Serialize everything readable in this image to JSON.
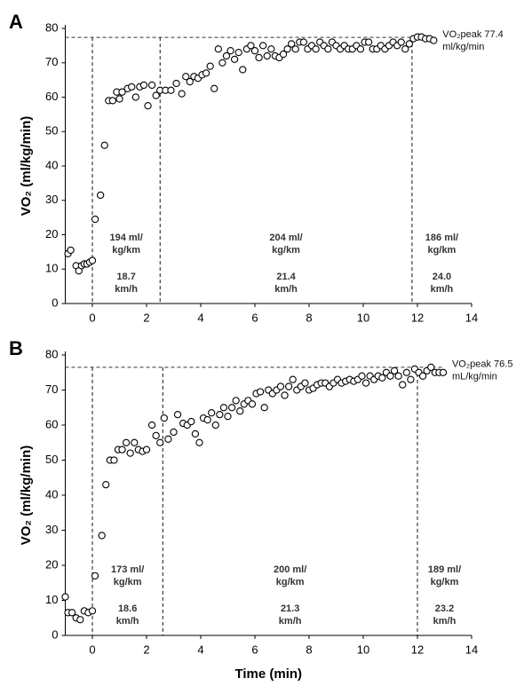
{
  "chart_data": [
    {
      "type": "scatter",
      "panel": "A",
      "ylabel": "VO₂ (ml/kg/min)",
      "x": [
        -0.9,
        -0.8,
        -0.6,
        -0.5,
        -0.4,
        -0.3,
        -0.2,
        -0.1,
        0,
        0.1,
        0.3,
        0.45,
        0.6,
        0.75,
        0.9,
        1.0,
        1.1,
        1.3,
        1.45,
        1.6,
        1.75,
        1.9,
        2.05,
        2.2,
        2.35,
        2.5,
        2.7,
        2.9,
        3.1,
        3.3,
        3.45,
        3.6,
        3.75,
        3.9,
        4.05,
        4.2,
        4.35,
        4.5,
        4.65,
        4.8,
        4.95,
        5.1,
        5.25,
        5.4,
        5.55,
        5.7,
        5.85,
        6.0,
        6.15,
        6.3,
        6.45,
        6.6,
        6.75,
        6.9,
        7.05,
        7.2,
        7.35,
        7.5,
        7.65,
        7.8,
        7.95,
        8.1,
        8.25,
        8.4,
        8.55,
        8.7,
        8.85,
        9.0,
        9.15,
        9.3,
        9.45,
        9.6,
        9.75,
        9.9,
        10.05,
        10.2,
        10.35,
        10.5,
        10.65,
        10.8,
        10.95,
        11.1,
        11.25,
        11.4,
        11.55,
        11.7,
        11.85,
        12.0,
        12.15,
        12.3,
        12.45,
        12.6
      ],
      "values": [
        14.5,
        15.5,
        11,
        9.5,
        11,
        11.5,
        11.5,
        12,
        12.5,
        24.5,
        31.5,
        46,
        59,
        59,
        61.5,
        59.5,
        61.5,
        62.5,
        63,
        60,
        63,
        63.5,
        57.5,
        63.5,
        60.5,
        62,
        62,
        62,
        64,
        61,
        66,
        64.5,
        66,
        65.5,
        66.5,
        67,
        69,
        62.5,
        74,
        70,
        72,
        73.5,
        71,
        73,
        68,
        74,
        75,
        73.5,
        71.5,
        75,
        72,
        74,
        72,
        71.5,
        72.5,
        74,
        75.5,
        74,
        76,
        76,
        74,
        75,
        74,
        76,
        75,
        74,
        76,
        75,
        74,
        75,
        74,
        74,
        75,
        74,
        76,
        76,
        74,
        74,
        75,
        74,
        75,
        76,
        75,
        76,
        74,
        75.5,
        77,
        77.5,
        77.5,
        77,
        77,
        76.5
      ],
      "color": "#000000",
      "xlim": [
        -1,
        14
      ],
      "xticks": [
        0,
        2,
        4,
        6,
        8,
        10,
        12,
        14
      ],
      "ylim": [
        0,
        80
      ],
      "yticks": [
        0,
        10,
        20,
        30,
        40,
        50,
        60,
        70,
        80
      ],
      "peak": 77.4,
      "peak_label": [
        "VO₂peak 77.4",
        "ml/kg/min"
      ],
      "phase_lines": [
        0,
        2.5,
        11.8
      ],
      "phase_labels": [
        {
          "economy": [
            "194 ml/",
            "kg/km"
          ],
          "speed": [
            "18.7",
            "km/h"
          ]
        },
        {
          "economy": [
            "204 ml/",
            "kg/km"
          ],
          "speed": [
            "21.4",
            "km/h"
          ]
        },
        {
          "economy": [
            "186 ml/",
            "kg/km"
          ],
          "speed": [
            "24.0",
            "km/h"
          ]
        }
      ]
    },
    {
      "type": "scatter",
      "panel": "B",
      "ylabel": "VO₂ (ml/kg/min)",
      "xlabel": "Time (min)",
      "x": [
        -1,
        -0.9,
        -0.75,
        -0.6,
        -0.45,
        -0.3,
        -0.15,
        0,
        0.1,
        0.35,
        0.5,
        0.65,
        0.8,
        0.95,
        1.1,
        1.25,
        1.4,
        1.55,
        1.7,
        1.85,
        2.0,
        2.2,
        2.35,
        2.5,
        2.65,
        2.8,
        3.0,
        3.15,
        3.35,
        3.5,
        3.65,
        3.8,
        3.95,
        4.1,
        4.25,
        4.4,
        4.55,
        4.7,
        4.85,
        5.0,
        5.15,
        5.3,
        5.45,
        5.6,
        5.75,
        5.9,
        6.05,
        6.2,
        6.35,
        6.5,
        6.65,
        6.8,
        6.95,
        7.1,
        7.25,
        7.4,
        7.55,
        7.7,
        7.85,
        8.0,
        8.15,
        8.3,
        8.45,
        8.6,
        8.75,
        8.9,
        9.05,
        9.2,
        9.35,
        9.5,
        9.65,
        9.8,
        9.95,
        10.1,
        10.25,
        10.4,
        10.55,
        10.7,
        10.85,
        11.0,
        11.15,
        11.3,
        11.45,
        11.6,
        11.75,
        11.9,
        12.05,
        12.2,
        12.35,
        12.5,
        12.65,
        12.8,
        12.95
      ],
      "values": [
        11,
        6.5,
        6.5,
        5,
        4.5,
        7,
        6.5,
        7,
        17,
        28.5,
        43,
        50,
        50,
        53,
        53,
        55,
        52,
        55,
        53,
        52.5,
        53,
        60,
        57,
        55,
        62,
        56,
        58,
        63,
        60.5,
        60,
        61,
        57.5,
        55,
        62,
        61.5,
        63.5,
        60,
        63,
        65,
        62.5,
        65,
        67,
        64,
        66,
        67,
        66,
        69,
        69.5,
        65,
        70,
        69,
        70,
        71,
        68.5,
        71,
        73,
        70,
        71,
        72,
        70,
        70.5,
        71.5,
        72,
        72,
        71,
        72,
        73,
        72,
        72.5,
        73,
        72.5,
        73,
        74,
        72,
        74,
        73,
        74,
        73.5,
        75,
        74,
        75.5,
        74,
        71.5,
        75,
        73,
        76,
        75,
        74,
        75.5,
        76.5,
        75,
        75,
        75
      ],
      "color": "#000000",
      "xlim": [
        -1,
        14
      ],
      "xticks": [
        0,
        2,
        4,
        6,
        8,
        10,
        12,
        14
      ],
      "ylim": [
        0,
        80
      ],
      "yticks": [
        0,
        10,
        20,
        30,
        40,
        50,
        60,
        70,
        80
      ],
      "peak": 76.5,
      "peak_label": [
        "VO₂peak 76.5",
        "mL/kg/min"
      ],
      "phase_lines": [
        0,
        2.6,
        12
      ],
      "phase_labels": [
        {
          "economy": [
            "173 ml/",
            "kg/km"
          ],
          "speed": [
            "18.6",
            "km/h"
          ]
        },
        {
          "economy": [
            "200 ml/",
            "kg/km"
          ],
          "speed": [
            "21.3",
            "km/h"
          ]
        },
        {
          "economy": [
            "189 ml/",
            "kg/km"
          ],
          "speed": [
            "23.2",
            "km/h"
          ]
        }
      ]
    }
  ]
}
